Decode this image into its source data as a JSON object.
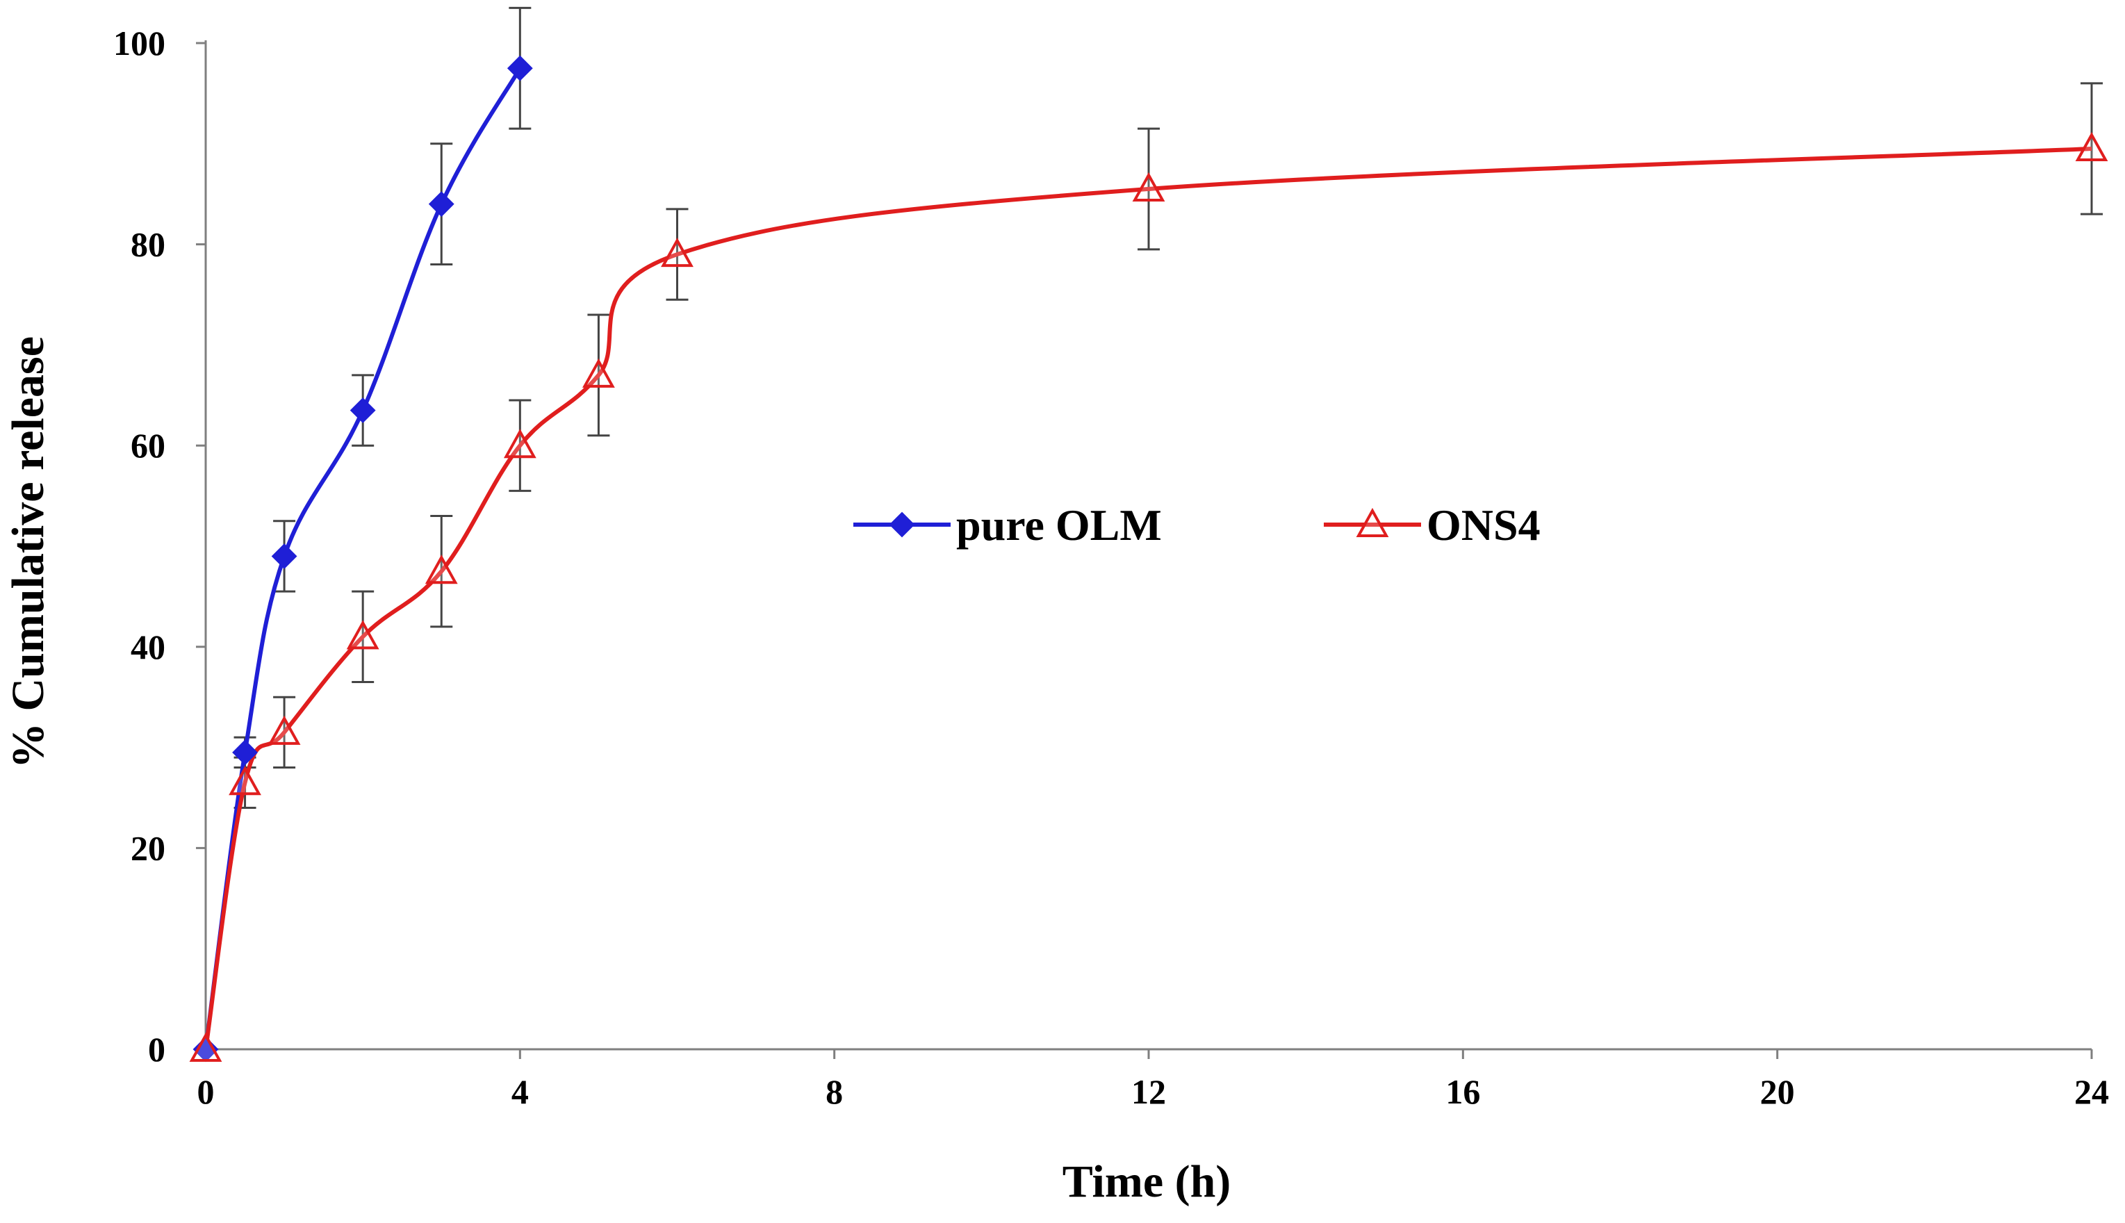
{
  "chart_data": {
    "type": "line",
    "title": "",
    "xlabel": "Time (h)",
    "ylabel": "% Cumulative  release",
    "xlim": [
      0,
      24
    ],
    "ylim": [
      0,
      100
    ],
    "xticks": [
      0,
      4,
      8,
      12,
      16,
      20,
      24
    ],
    "yticks": [
      0,
      20,
      40,
      60,
      80,
      100
    ],
    "grid": false,
    "legend_position": "center",
    "series": [
      {
        "name": "pure OLM",
        "color": "#1f1fd6",
        "marker": "diamond",
        "x": [
          0,
          0.5,
          1,
          2,
          3,
          4
        ],
        "y": [
          0,
          29.5,
          49,
          63.5,
          84,
          97.5
        ],
        "err": [
          0,
          1.5,
          3.5,
          3.5,
          6,
          6
        ]
      },
      {
        "name": "ONS4",
        "color": "#e01e1e",
        "marker": "triangle-open",
        "x": [
          0,
          0.5,
          1,
          2,
          3,
          4,
          5,
          6,
          12,
          24
        ],
        "y": [
          0,
          26.5,
          31.5,
          41,
          47.5,
          60,
          67,
          79,
          85.5,
          89.5
        ],
        "err": [
          0,
          2.5,
          3.5,
          4.5,
          5.5,
          4.5,
          6,
          4.5,
          6,
          6.5
        ]
      }
    ]
  }
}
